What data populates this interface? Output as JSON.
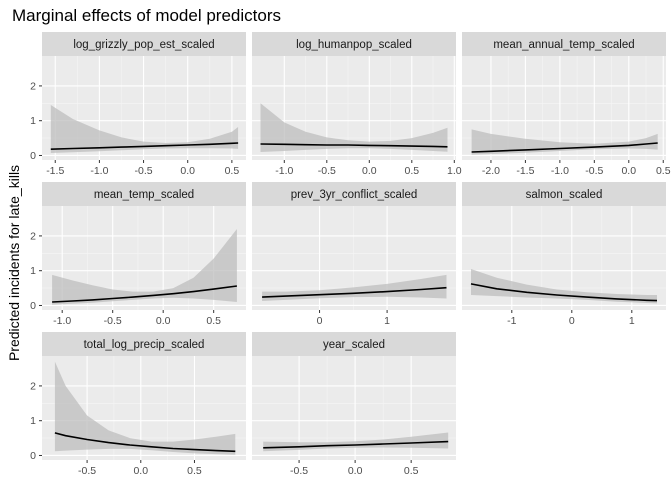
{
  "chart_data": {
    "type": "line",
    "title": "Marginal effects of model predictors",
    "ylabel": "Predicted incidents for late_kills",
    "xlabel": "",
    "shared_y": true,
    "ylim": [
      -0.13,
      2.86
    ],
    "yticks": [
      0,
      1,
      2
    ],
    "grid": true,
    "colors": {
      "panel_bg": "#ebebeb",
      "strip_bg": "#d9d9d9",
      "grid_major": "#ffffff",
      "ribbon": "#bdbdbd",
      "line": "#000000"
    },
    "facets": [
      {
        "name": "log_grizzly_pop_est_scaled",
        "xlim": [
          -1.65,
          0.66
        ],
        "xticks": [
          -1.5,
          -1.0,
          -0.5,
          0.0,
          0.5
        ],
        "xtick_labels": [
          "-1.5",
          "-1.0",
          "-0.5",
          "0.0",
          "0.5"
        ],
        "x": [
          -1.55,
          -1.3,
          -1.0,
          -0.75,
          -0.5,
          -0.25,
          0.0,
          0.25,
          0.5,
          0.57
        ],
        "fit": [
          0.18,
          0.2,
          0.22,
          0.24,
          0.26,
          0.28,
          0.3,
          0.32,
          0.35,
          0.36
        ],
        "lower": [
          0.07,
          0.09,
          0.12,
          0.15,
          0.18,
          0.2,
          0.21,
          0.21,
          0.2,
          0.19
        ],
        "upper": [
          1.45,
          1.05,
          0.72,
          0.52,
          0.4,
          0.36,
          0.38,
          0.48,
          0.68,
          0.82
        ]
      },
      {
        "name": "log_humanpop_scaled",
        "xlim": [
          -1.38,
          1.02
        ],
        "xticks": [
          -1.0,
          -0.5,
          0.0,
          0.5,
          1.0
        ],
        "xtick_labels": [
          "-1.0",
          "-0.5",
          "0.0",
          "0.5",
          "1.0"
        ],
        "x": [
          -1.28,
          -1.0,
          -0.75,
          -0.5,
          -0.25,
          0.0,
          0.25,
          0.5,
          0.75,
          0.92
        ],
        "fit": [
          0.33,
          0.32,
          0.31,
          0.3,
          0.3,
          0.29,
          0.28,
          0.27,
          0.26,
          0.25
        ],
        "lower": [
          0.1,
          0.13,
          0.16,
          0.19,
          0.21,
          0.21,
          0.19,
          0.16,
          0.13,
          0.11
        ],
        "upper": [
          1.5,
          0.95,
          0.68,
          0.52,
          0.44,
          0.4,
          0.42,
          0.5,
          0.65,
          0.8
        ]
      },
      {
        "name": "mean_annual_temp_scaled",
        "xlim": [
          -2.42,
          0.54
        ],
        "xticks": [
          -2.0,
          -1.5,
          -1.0,
          -0.5,
          0.0,
          0.5
        ],
        "xtick_labels": [
          "-2.0",
          "-1.5",
          "-1.0",
          "-0.5",
          "0.0",
          "0.5"
        ],
        "x": [
          -2.28,
          -2.0,
          -1.5,
          -1.0,
          -0.5,
          0.0,
          0.25,
          0.42
        ],
        "fit": [
          0.1,
          0.12,
          0.16,
          0.2,
          0.24,
          0.29,
          0.33,
          0.36
        ],
        "lower": [
          0.02,
          0.04,
          0.08,
          0.13,
          0.18,
          0.2,
          0.19,
          0.17
        ],
        "upper": [
          0.75,
          0.62,
          0.48,
          0.38,
          0.34,
          0.4,
          0.5,
          0.62
        ]
      },
      {
        "name": "mean_temp_scaled",
        "xlim": [
          -1.2,
          0.82
        ],
        "xticks": [
          -1.0,
          -0.5,
          0.0,
          0.5
        ],
        "xtick_labels": [
          "-1.0",
          "-0.5",
          "0.0",
          "0.5"
        ],
        "x": [
          -1.1,
          -0.9,
          -0.7,
          -0.5,
          -0.3,
          -0.1,
          0.1,
          0.3,
          0.5,
          0.73
        ],
        "fit": [
          0.1,
          0.13,
          0.16,
          0.2,
          0.24,
          0.29,
          0.34,
          0.4,
          0.47,
          0.56
        ],
        "lower": [
          0.02,
          0.05,
          0.08,
          0.12,
          0.16,
          0.2,
          0.22,
          0.2,
          0.16,
          0.1
        ],
        "upper": [
          0.88,
          0.72,
          0.58,
          0.46,
          0.4,
          0.4,
          0.5,
          0.8,
          1.35,
          2.2
        ]
      },
      {
        "name": "prev_3yr_conflict_scaled",
        "xlim": [
          -1.0,
          2.02
        ],
        "xticks": [
          0,
          1
        ],
        "xtick_labels": [
          "0",
          "1"
        ],
        "x": [
          -0.85,
          -0.5,
          0.0,
          0.5,
          1.0,
          1.5,
          1.88
        ],
        "fit": [
          0.24,
          0.27,
          0.31,
          0.35,
          0.4,
          0.46,
          0.51
        ],
        "lower": [
          0.13,
          0.16,
          0.21,
          0.24,
          0.25,
          0.23,
          0.2
        ],
        "upper": [
          0.4,
          0.4,
          0.44,
          0.52,
          0.62,
          0.76,
          0.88
        ]
      },
      {
        "name": "salmon_scaled",
        "xlim": [
          -1.83,
          1.57
        ],
        "xticks": [
          -1,
          0,
          1
        ],
        "xtick_labels": [
          "-1",
          "0",
          "1"
        ],
        "x": [
          -1.68,
          -1.25,
          -0.75,
          -0.25,
          0.25,
          0.75,
          1.25,
          1.42
        ],
        "fit": [
          0.62,
          0.48,
          0.38,
          0.3,
          0.24,
          0.19,
          0.15,
          0.14
        ],
        "lower": [
          0.3,
          0.27,
          0.23,
          0.2,
          0.16,
          0.11,
          0.07,
          0.06
        ],
        "upper": [
          1.05,
          0.8,
          0.6,
          0.46,
          0.38,
          0.33,
          0.3,
          0.3
        ]
      },
      {
        "name": "total_log_precip_scaled",
        "xlim": [
          -0.92,
          0.98
        ],
        "xticks": [
          -0.5,
          0.0,
          0.5
        ],
        "xtick_labels": [
          "-0.5",
          "0.0",
          "0.5"
        ],
        "x": [
          -0.8,
          -0.7,
          -0.5,
          -0.3,
          -0.1,
          0.1,
          0.3,
          0.5,
          0.7,
          0.88
        ],
        "fit": [
          0.65,
          0.57,
          0.46,
          0.37,
          0.3,
          0.25,
          0.2,
          0.17,
          0.14,
          0.12
        ],
        "lower": [
          0.12,
          0.14,
          0.17,
          0.19,
          0.19,
          0.15,
          0.1,
          0.06,
          0.04,
          0.02
        ],
        "upper": [
          2.7,
          2.0,
          1.15,
          0.72,
          0.5,
          0.4,
          0.4,
          0.46,
          0.54,
          0.62
        ]
      },
      {
        "name": "year_scaled",
        "xlim": [
          -0.92,
          0.9
        ],
        "xticks": [
          -0.5,
          0.0,
          0.5
        ],
        "xtick_labels": [
          "-0.5",
          "0.0",
          "0.5"
        ],
        "x": [
          -0.82,
          -0.5,
          -0.25,
          0.0,
          0.25,
          0.5,
          0.83
        ],
        "fit": [
          0.22,
          0.25,
          0.28,
          0.3,
          0.33,
          0.36,
          0.4
        ],
        "lower": [
          0.12,
          0.16,
          0.2,
          0.22,
          0.23,
          0.22,
          0.2
        ],
        "upper": [
          0.4,
          0.38,
          0.38,
          0.41,
          0.46,
          0.54,
          0.66
        ]
      }
    ]
  }
}
